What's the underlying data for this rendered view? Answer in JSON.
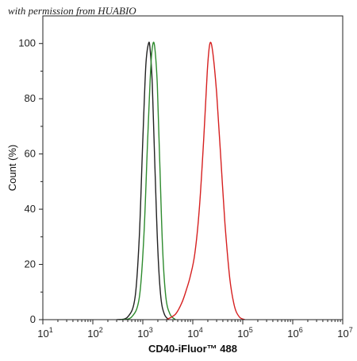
{
  "watermark": "with permission from HUABIO",
  "chart_data": {
    "type": "line",
    "xlabel": "CD40-iFluor™ 488",
    "ylabel": "Count  (%)",
    "x_scale": "log",
    "xlim": [
      10,
      10000000
    ],
    "ylim": [
      0,
      110
    ],
    "x_ticks": [
      {
        "value": 10,
        "base": "10",
        "exp": "1"
      },
      {
        "value": 100,
        "base": "10",
        "exp": "2"
      },
      {
        "value": 1000,
        "base": "10",
        "exp": "3"
      },
      {
        "value": 10000,
        "base": "10",
        "exp": "4"
      },
      {
        "value": 100000,
        "base": "10",
        "exp": "5"
      },
      {
        "value": 1000000,
        "base": "10",
        "exp": "6"
      },
      {
        "value": 10000000,
        "base": "10",
        "exp": "7"
      }
    ],
    "y_ticks": [
      0,
      20,
      40,
      60,
      80,
      100
    ],
    "series": [
      {
        "color": "#222222",
        "x": [
          300,
          500,
          700,
          850,
          1000,
          1150,
          1300,
          1400,
          1550,
          1750,
          2000,
          2300,
          2700,
          3300
        ],
        "y": [
          0,
          1,
          8,
          30,
          65,
          92,
          100,
          98,
          85,
          55,
          25,
          8,
          2,
          0
        ]
      },
      {
        "color": "#2e8b2e",
        "x": [
          350,
          600,
          850,
          1050,
          1250,
          1450,
          1600,
          1750,
          1950,
          2200,
          2500,
          2900,
          3500,
          4500
        ],
        "y": [
          0,
          1,
          8,
          30,
          65,
          92,
          100,
          98,
          85,
          55,
          25,
          8,
          2,
          0
        ]
      },
      {
        "color": "#d62020",
        "x": [
          3000,
          4500,
          6000,
          7500,
          9000,
          11000,
          13500,
          16500,
          19500,
          22000,
          25000,
          30000,
          36000,
          44000,
          55000,
          68000,
          85000,
          110000
        ],
        "y": [
          0,
          2,
          6,
          11,
          16,
          24,
          40,
          65,
          90,
          100,
          97,
          82,
          60,
          35,
          15,
          5,
          1,
          0
        ]
      }
    ]
  }
}
